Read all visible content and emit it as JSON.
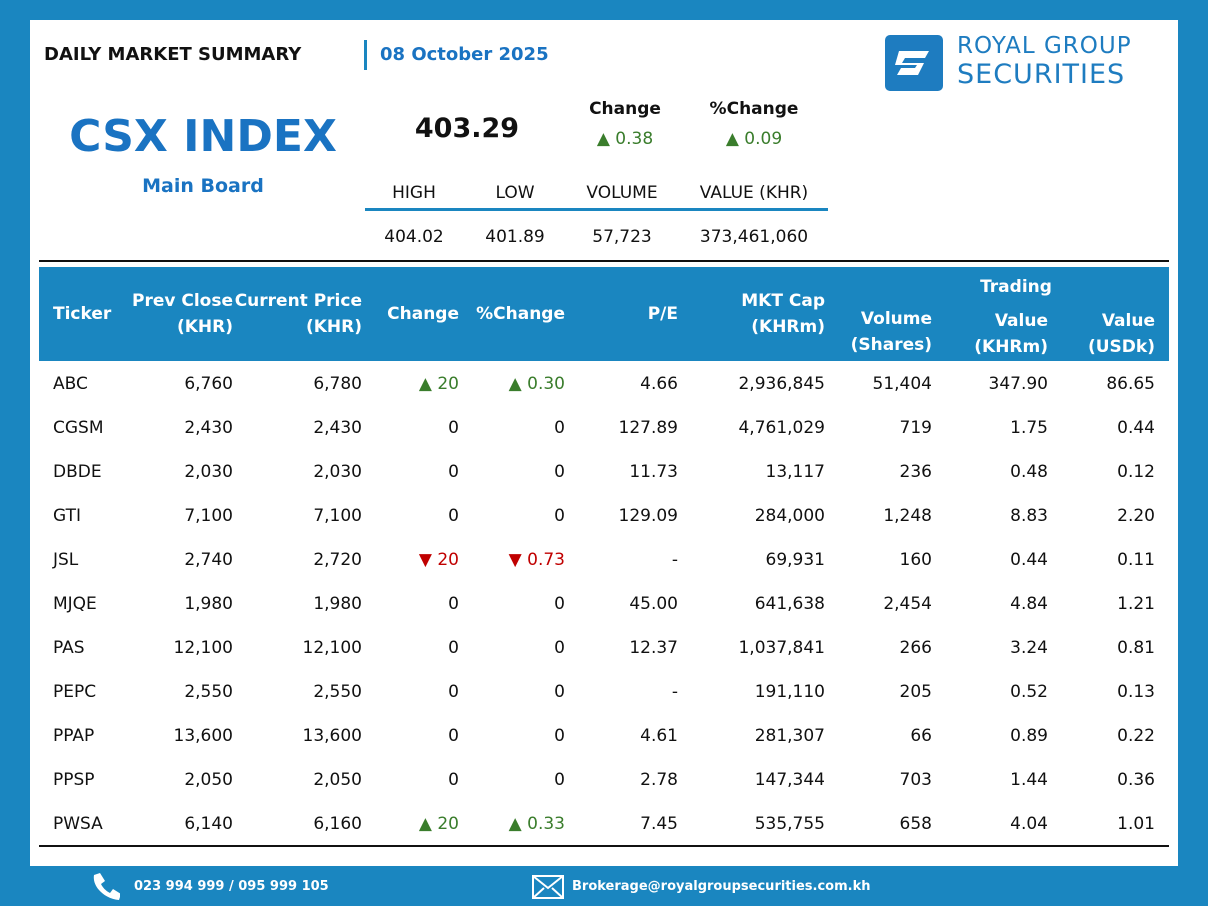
{
  "header": {
    "title": "DAILY MARKET SUMMARY",
    "date": "08 October 2025",
    "brand": {
      "line1": "ROYAL GROUP",
      "line2": "SECURITIES"
    }
  },
  "index": {
    "name": "CSX INDEX",
    "board": "Main Board",
    "value": "403.29",
    "change_label": "Change",
    "change": "▲ 0.38",
    "pct_change_label": "%Change",
    "pct_change": "▲ 0.09",
    "stats": {
      "labels": [
        "HIGH",
        "LOW",
        "VOLUME",
        "VALUE (KHR)"
      ],
      "values": [
        "404.02",
        "401.89",
        "57,723",
        "373,461,060"
      ]
    }
  },
  "table": {
    "group_header": "Trading",
    "columns": [
      [
        "Ticker"
      ],
      [
        "Prev Close",
        "(KHR)"
      ],
      [
        "Current Price",
        "(KHR)"
      ],
      [
        "Change"
      ],
      [
        "%Change"
      ],
      [
        "P/E"
      ],
      [
        "MKT Cap",
        "(KHRm)"
      ],
      [
        "Volume",
        "(Shares)"
      ],
      [
        "Value",
        "(KHRm)"
      ],
      [
        "Value",
        "(USDk)"
      ]
    ],
    "rows": [
      [
        "ABC",
        "6,760",
        "6,780",
        "▲ 20",
        "▲ 0.30",
        "4.66",
        "2,936,845",
        "51,404",
        "347.90",
        "86.65"
      ],
      [
        "CGSM",
        "2,430",
        "2,430",
        "0",
        "0",
        "127.89",
        "4,761,029",
        "719",
        "1.75",
        "0.44"
      ],
      [
        "DBDE",
        "2,030",
        "2,030",
        "0",
        "0",
        "11.73",
        "13,117",
        "236",
        "0.48",
        "0.12"
      ],
      [
        "GTI",
        "7,100",
        "7,100",
        "0",
        "0",
        "129.09",
        "284,000",
        "1,248",
        "8.83",
        "2.20"
      ],
      [
        "JSL",
        "2,740",
        "2,720",
        "▼ 20",
        "▼ 0.73",
        "-",
        "69,931",
        "160",
        "0.44",
        "0.11"
      ],
      [
        "MJQE",
        "1,980",
        "1,980",
        "0",
        "0",
        "45.00",
        "641,638",
        "2,454",
        "4.84",
        "1.21"
      ],
      [
        "PAS",
        "12,100",
        "12,100",
        "0",
        "0",
        "12.37",
        "1,037,841",
        "266",
        "3.24",
        "0.81"
      ],
      [
        "PEPC",
        "2,550",
        "2,550",
        "0",
        "0",
        "-",
        "191,110",
        "205",
        "0.52",
        "0.13"
      ],
      [
        "PPAP",
        "13,600",
        "13,600",
        "0",
        "0",
        "4.61",
        "281,307",
        "66",
        "0.89",
        "0.22"
      ],
      [
        "PPSP",
        "2,050",
        "2,050",
        "0",
        "0",
        "2.78",
        "147,344",
        "703",
        "1.44",
        "0.36"
      ],
      [
        "PWSA",
        "6,140",
        "6,160",
        "▲ 20",
        "▲ 0.33",
        "7.45",
        "535,755",
        "658",
        "4.04",
        "1.01"
      ]
    ]
  },
  "footer": {
    "phone": "023 994 999 / 095 999 105",
    "email": "Brokerage@royalgroupsecurities.com.kh"
  }
}
